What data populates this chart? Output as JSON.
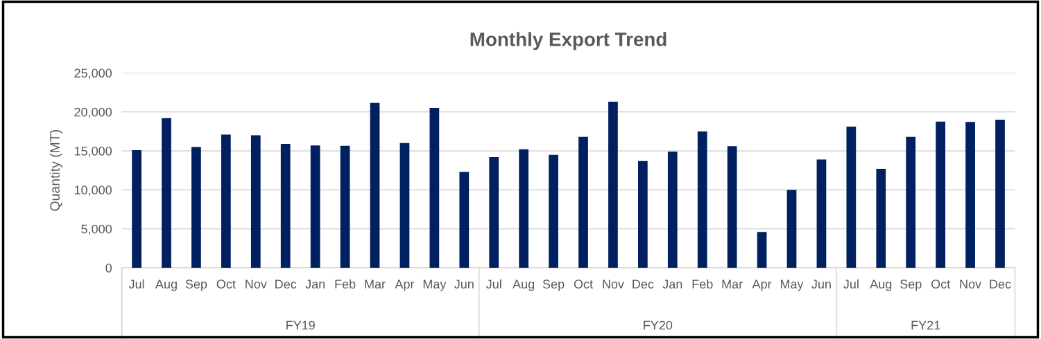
{
  "chart_data": {
    "type": "bar",
    "title": "Monthly Export Trend",
    "ylabel": "Quantity (MT)",
    "categories": [
      "Jul",
      "Aug",
      "Sep",
      "Oct",
      "Nov",
      "Dec",
      "Jan",
      "Feb",
      "Mar",
      "Apr",
      "May",
      "Jun",
      "Jul",
      "Aug",
      "Sep",
      "Oct",
      "Nov",
      "Dec",
      "Jan",
      "Feb",
      "Mar",
      "Apr",
      "May",
      "Jun",
      "Jul",
      "Aug",
      "Sep",
      "Oct",
      "Nov",
      "Dec"
    ],
    "values": [
      15100,
      19200,
      15500,
      17100,
      17000,
      15900,
      15700,
      15650,
      21150,
      16000,
      20500,
      12300,
      14200,
      15200,
      14500,
      16800,
      21300,
      13700,
      14900,
      17500,
      15600,
      4600,
      10000,
      13900,
      18100,
      12700,
      16800,
      18750,
      18700,
      19000
    ],
    "color": "#002060",
    "ylim": [
      0,
      25000
    ],
    "yticks": [
      {
        "value": 0,
        "label": "0"
      },
      {
        "value": 5000,
        "label": "5,000"
      },
      {
        "value": 10000,
        "label": "10,000"
      },
      {
        "value": 15000,
        "label": "15,000"
      },
      {
        "value": 20000,
        "label": "20,000"
      },
      {
        "value": 25000,
        "label": "25,000"
      }
    ],
    "grid": "y",
    "annotations": [
      "FY19",
      "FY20",
      "FY21"
    ]
  }
}
